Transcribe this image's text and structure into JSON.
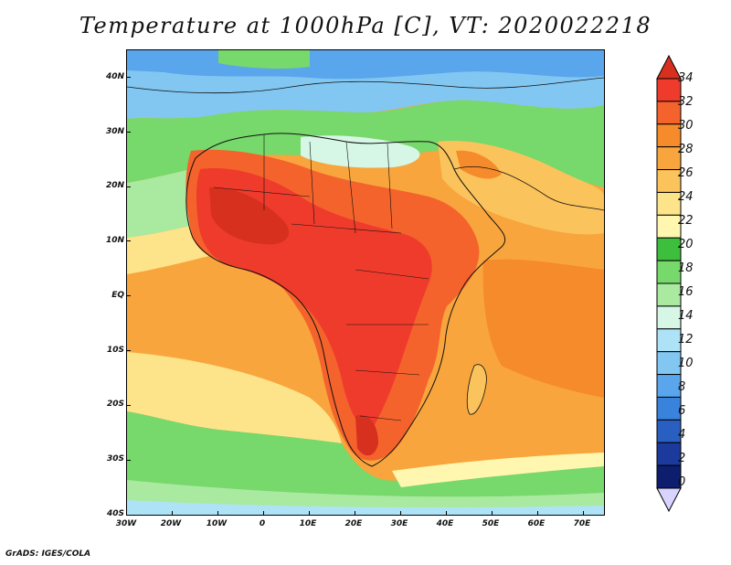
{
  "title": "Temperature at 1000hPa [C], VT: 2020022218",
  "credit": "GrADS: IGES/COLA",
  "map": {
    "lon_range": [
      -30,
      75
    ],
    "lat_range": [
      -40,
      45
    ],
    "lat_labels": [
      "40N",
      "30N",
      "20N",
      "10N",
      "EQ",
      "10S",
      "20S",
      "30S",
      "40S"
    ],
    "lon_labels": [
      "30W",
      "20W",
      "10W",
      "0",
      "10E",
      "20E",
      "30E",
      "40E",
      "50E",
      "60E",
      "70E"
    ]
  },
  "colorbar": {
    "labels": [
      "34",
      "32",
      "30",
      "28",
      "26",
      "24",
      "22",
      "20",
      "18",
      "16",
      "14",
      "12",
      "10",
      "8",
      "6",
      "4",
      "2",
      "0"
    ],
    "colors": [
      "#d7301f",
      "#ef3b2c",
      "#f4632c",
      "#f58b2a",
      "#f9a53d",
      "#fbc35c",
      "#fde48a",
      "#fff7b0",
      "#3dbf3d",
      "#77d86b",
      "#a9eaa0",
      "#d6f7e6",
      "#aee3f7",
      "#82c7f2",
      "#5aa6ec",
      "#3a83dc",
      "#2a5fc2",
      "#1b3a9c",
      "#0d1e6e",
      "#d8d4ff"
    ]
  }
}
